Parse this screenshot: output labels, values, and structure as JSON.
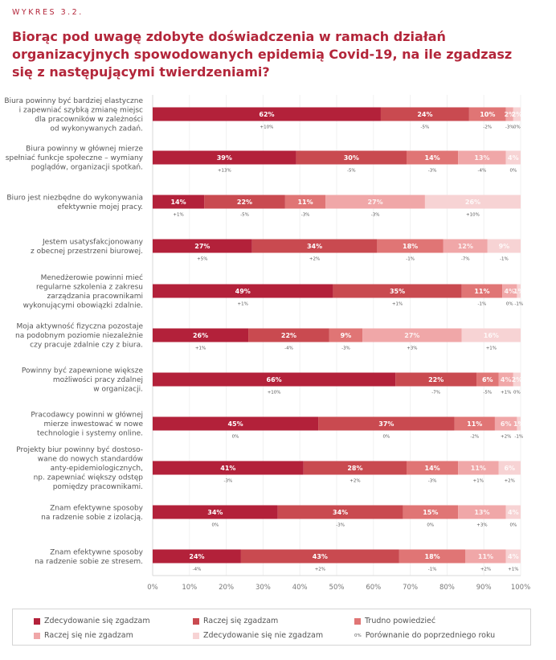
{
  "kicker": "WYKRES 3.2.",
  "title": "Biorąc pod uwagę zdobyte doświadczenia w ramach działań organizacyjnych spowodowanych epidemią Covid-19, na ile zgadzasz się z następującymi twierdzeniami?",
  "chart_data": {
    "type": "bar",
    "orientation": "horizontal",
    "stacked": true,
    "title": "Biorąc pod uwagę zdobyte doświadczenia w ramach działań organizacyjnych spowodowanych epidemią Covid-19, na ile zgadzasz się z następującymi twierdzeniami?",
    "xlabel": "",
    "ylabel": "",
    "xlim": [
      0,
      100
    ],
    "x_ticks": [
      "0%",
      "10%",
      "20%",
      "30%",
      "40%",
      "50%",
      "60%",
      "70%",
      "80%",
      "90%",
      "100%"
    ],
    "grid": true,
    "legend_position": "bottom",
    "series_names": [
      "Zdecydowanie się zgadzam",
      "Raczej się zgadzam",
      "Trudno powiedzieć",
      "Raczej się nie zgadzam",
      "Zdecydowanie się nie zgadzam"
    ],
    "series_colors": [
      "#b3213a",
      "#c94a50",
      "#e07575",
      "#f0a7a8",
      "#f7d3d4"
    ],
    "categories": [
      [
        "Biura powinny być bardziej elastyczne",
        "i zapewniać szybką zmianę miejsc",
        "dla pracowników w zależności",
        "od wykonywanych zadań."
      ],
      [
        "Biura powinny w głównej mierze",
        "spełniać funkcje społeczne – wymiany",
        "poglądów, organizacji spotkań."
      ],
      [
        "Biuro jest niezbędne do wykonywania",
        "efektywnie mojej pracy."
      ],
      [
        "Jestem usatysfakcjonowany",
        "z obecnej przestrzeni biurowej."
      ],
      [
        "Menedżerowie powinni mieć",
        "regularne szkolenia z zakresu",
        "zarządzania pracownikami",
        "wykonującymi obowiązki zdalnie."
      ],
      [
        "Moja aktywność fizyczna pozostaje",
        "na podobnym poziomie niezależnie",
        "czy pracuje zdalnie czy z biura."
      ],
      [
        "Powinny być zapewnione większe",
        "możliwości pracy zdalnej",
        "w organizacji."
      ],
      [
        "Pracodawcy powinni w głównej",
        "mierze inwestować w nowe",
        "technologie i systemy online."
      ],
      [
        "Projekty biur powinny być dostoso-",
        "wane do nowych standardów",
        "anty-epidemiologicznych,",
        "np. zapewniać większy odstęp",
        "pomiędzy pracownikami."
      ],
      [
        "Znam efektywne sposoby",
        "na radzenie sobie z izolacją."
      ],
      [
        "Znam efektywne sposoby",
        "na radzenie sobie ze stresem."
      ]
    ],
    "rows": [
      {
        "values": [
          62,
          24,
          10,
          2,
          2
        ],
        "labels": [
          "62%",
          "24%",
          "10%",
          "2%",
          "2%"
        ],
        "changes": [
          "+10%",
          "-5%",
          "-2%",
          "-3%",
          "0%"
        ]
      },
      {
        "values": [
          39,
          30,
          14,
          13,
          4
        ],
        "labels": [
          "39%",
          "30%",
          "14%",
          "13%",
          "4%"
        ],
        "changes": [
          "+13%",
          "-5%",
          "-3%",
          "-4%",
          "0%"
        ]
      },
      {
        "values": [
          14,
          22,
          11,
          27,
          26
        ],
        "labels": [
          "14%",
          "22%",
          "11%",
          "27%",
          "26%"
        ],
        "changes": [
          "+1%",
          "-5%",
          "-3%",
          "-3%",
          "+10%"
        ]
      },
      {
        "values": [
          27,
          34,
          18,
          12,
          9
        ],
        "labels": [
          "27%",
          "34%",
          "18%",
          "12%",
          "9%"
        ],
        "changes": [
          "+5%",
          "+2%",
          "-1%",
          "-7%",
          "-1%"
        ]
      },
      {
        "values": [
          49,
          35,
          11,
          4,
          1
        ],
        "labels": [
          "49%",
          "35%",
          "11%",
          "4%",
          "1%"
        ],
        "changes": [
          "+1%",
          "+1%",
          "-1%",
          "0%",
          "-1%"
        ]
      },
      {
        "values": [
          26,
          22,
          9,
          27,
          16
        ],
        "labels": [
          "26%",
          "22%",
          "9%",
          "27%",
          "16%"
        ],
        "changes": [
          "+1%",
          "-4%",
          "-3%",
          "+3%",
          "+1%"
        ]
      },
      {
        "values": [
          66,
          22,
          6,
          4,
          2
        ],
        "labels": [
          "66%",
          "22%",
          "6%",
          "4%",
          "2%"
        ],
        "changes": [
          "+10%",
          "-7%",
          "-5%",
          "+1%",
          "0%"
        ]
      },
      {
        "values": [
          45,
          37,
          11,
          6,
          1
        ],
        "labels": [
          "45%",
          "37%",
          "11%",
          "6%",
          "1%"
        ],
        "changes": [
          "0%",
          "0%",
          "-2%",
          "+2%",
          "-1%"
        ]
      },
      {
        "values": [
          41,
          28,
          14,
          11,
          6
        ],
        "labels": [
          "41%",
          "28%",
          "14%",
          "11%",
          "6%"
        ],
        "changes": [
          "-3%",
          "+2%",
          "-3%",
          "+1%",
          "+2%"
        ]
      },
      {
        "values": [
          34,
          34,
          15,
          13,
          4
        ],
        "labels": [
          "34%",
          "34%",
          "15%",
          "13%",
          "4%"
        ],
        "changes": [
          "0%",
          "-3%",
          "0%",
          "+3%",
          "0%"
        ]
      },
      {
        "values": [
          24,
          43,
          18,
          11,
          4
        ],
        "labels": [
          "24%",
          "43%",
          "18%",
          "11%",
          "4%"
        ],
        "changes": [
          "-4%",
          "+2%",
          "-1%",
          "+2%",
          "+1%"
        ]
      }
    ]
  },
  "legend": {
    "items": [
      {
        "label": "Zdecydowanie się zgadzam",
        "color": "#b3213a"
      },
      {
        "label": "Raczej się zgadzam",
        "color": "#c94a50"
      },
      {
        "label": "Trudno powiedzieć",
        "color": "#e07575"
      },
      {
        "label": "Raczej się nie zgadzam",
        "color": "#f0a7a8"
      },
      {
        "label": "Zdecydowanie się nie zgadzam",
        "color": "#f7d3d4"
      }
    ],
    "comparison": {
      "glyph": "0%",
      "label": "Porównanie do poprzedniego roku"
    }
  }
}
